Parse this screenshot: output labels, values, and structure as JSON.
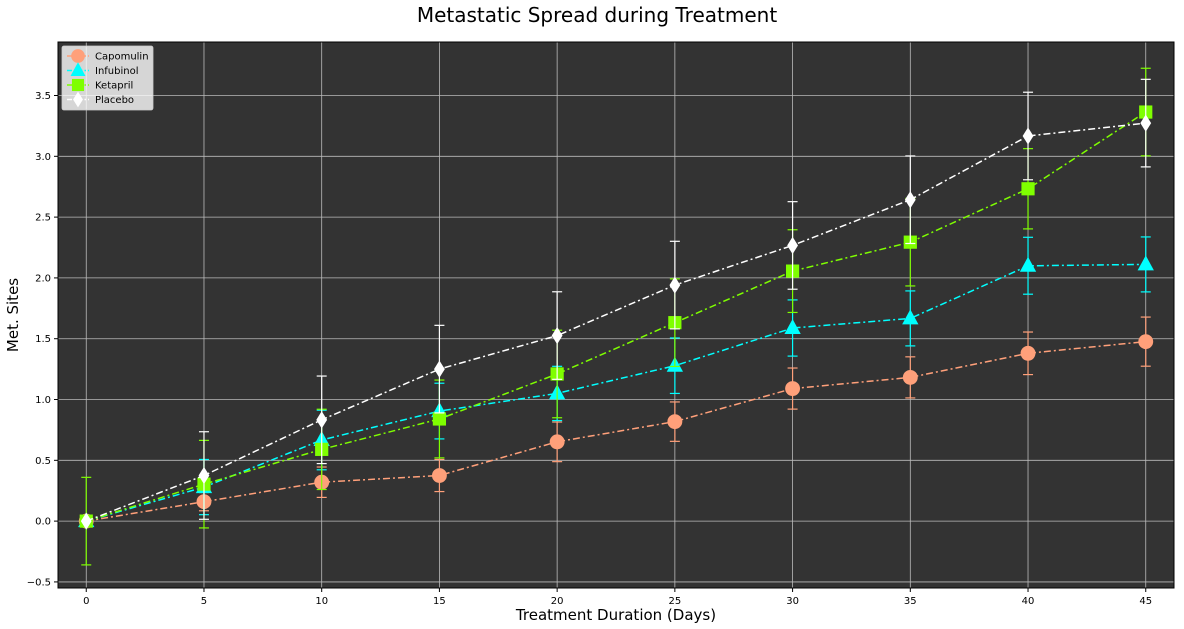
{
  "chart_data": {
    "type": "line",
    "title": "Metastatic Spread during Treatment",
    "xlabel": "Treatment Duration (Days)",
    "ylabel": "Met. Sites",
    "x": [
      0,
      5,
      10,
      15,
      20,
      25,
      30,
      35,
      40,
      45
    ],
    "xlim": [
      -1.2,
      46.2
    ],
    "ylim": [
      -0.55,
      3.94
    ],
    "xticks": [
      0,
      5,
      10,
      15,
      20,
      25,
      30,
      35,
      40,
      45
    ],
    "yticks": [
      -0.5,
      0.0,
      0.5,
      1.0,
      1.5,
      2.0,
      2.5,
      3.0,
      3.5
    ],
    "ytick_labels": [
      "−0.5",
      "0.0",
      "0.5",
      "1.0",
      "1.5",
      "2.0",
      "2.5",
      "3.0",
      "3.5"
    ],
    "grid": true,
    "background": "#333333",
    "grid_color": "#bbbbbb",
    "legend_position": "upper-left",
    "series": [
      {
        "name": "Capomulin",
        "color": "#ffa07a",
        "marker": "circle",
        "line_style": "dash-dot",
        "values": [
          0.0,
          0.16,
          0.32,
          0.375,
          0.652,
          0.818,
          1.09,
          1.182,
          1.38,
          1.476
        ],
        "errors": [
          0.0,
          0.075,
          0.125,
          0.132,
          0.163,
          0.162,
          0.169,
          0.169,
          0.175,
          0.202
        ]
      },
      {
        "name": "Infubinol",
        "color": "#00ffff",
        "marker": "triangle-up",
        "line_style": "dash-dot",
        "values": [
          0.0,
          0.28,
          0.667,
          0.905,
          1.05,
          1.278,
          1.588,
          1.667,
          2.1,
          2.111
        ],
        "errors": [
          0.0,
          0.227,
          0.245,
          0.229,
          0.223,
          0.228,
          0.231,
          0.226,
          0.234,
          0.226
        ]
      },
      {
        "name": "Ketapril",
        "color": "#7fff00",
        "marker": "square",
        "line_style": "dash-dot",
        "values": [
          0.0,
          0.304,
          0.59,
          0.84,
          1.21,
          1.632,
          2.056,
          2.294,
          2.733,
          3.364
        ],
        "errors": [
          0.36,
          0.36,
          0.33,
          0.32,
          0.36,
          0.36,
          0.34,
          0.36,
          0.33,
          0.36
        ]
      },
      {
        "name": "Placebo",
        "color": "#ffffff",
        "marker": "diamond",
        "line_style": "dash-dot",
        "values": [
          0.0,
          0.375,
          0.833,
          1.25,
          1.526,
          1.941,
          2.267,
          2.643,
          3.167,
          3.273
        ],
        "errors": [
          0.0,
          0.36,
          0.36,
          0.36,
          0.36,
          0.36,
          0.36,
          0.36,
          0.36,
          0.36
        ]
      }
    ]
  }
}
